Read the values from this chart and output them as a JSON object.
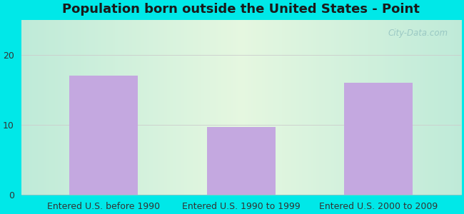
{
  "title": "Population born outside the United States - Point",
  "categories": [
    "Entered U.S. before 1990",
    "Entered U.S. 1990 to 1999",
    "Entered U.S. 2000 to 2009"
  ],
  "values": [
    17.0,
    9.7,
    16.0
  ],
  "bar_color": "#c4a8e0",
  "yticks": [
    0,
    10,
    20
  ],
  "ylim": [
    0,
    25
  ],
  "outer_bg_color": "#00e8e8",
  "title_fontsize": 13,
  "tick_fontsize": 9,
  "watermark": "City-Data.com"
}
